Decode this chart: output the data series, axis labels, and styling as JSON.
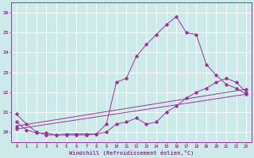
{
  "xlabel": "Windchill (Refroidissement éolien,°C)",
  "xlim": [
    -0.5,
    23.5
  ],
  "ylim": [
    19.5,
    26.5
  ],
  "yticks": [
    20,
    21,
    22,
    23,
    24,
    25,
    26
  ],
  "xticks": [
    0,
    1,
    2,
    3,
    4,
    5,
    6,
    7,
    8,
    9,
    10,
    11,
    12,
    13,
    14,
    15,
    16,
    17,
    18,
    19,
    20,
    21,
    22,
    23
  ],
  "bg_color": "#cceaea",
  "grid_color": "#ffffff",
  "line_color": "#993399",
  "line1_x": [
    0,
    1,
    2,
    3,
    4,
    5,
    6,
    7,
    8,
    9,
    10,
    11,
    12,
    13,
    14,
    15,
    16,
    17,
    18,
    19,
    20,
    21,
    22,
    23
  ],
  "line1_y": [
    20.9,
    20.4,
    20.0,
    19.85,
    19.85,
    19.9,
    19.9,
    19.9,
    19.9,
    20.4,
    22.5,
    22.7,
    23.8,
    24.4,
    24.9,
    25.4,
    25.8,
    25.0,
    24.9,
    23.4,
    22.85,
    22.4,
    22.2,
    21.9
  ],
  "line2_x": [
    0,
    1,
    2,
    3,
    4,
    5,
    6,
    7,
    8,
    9,
    10,
    11,
    12,
    13,
    14,
    15,
    16,
    17,
    18,
    19,
    20,
    21,
    22,
    23
  ],
  "line2_y": [
    20.5,
    20.1,
    19.95,
    19.95,
    19.85,
    19.85,
    19.85,
    19.85,
    19.9,
    20.0,
    20.4,
    20.5,
    20.7,
    20.4,
    20.5,
    21.0,
    21.3,
    21.7,
    22.0,
    22.2,
    22.5,
    22.7,
    22.5,
    22.0
  ],
  "line3_x": [
    0,
    23
  ],
  "line3_y": [
    20.3,
    22.15
  ],
  "line4_x": [
    0,
    23
  ],
  "line4_y": [
    20.15,
    21.9
  ]
}
